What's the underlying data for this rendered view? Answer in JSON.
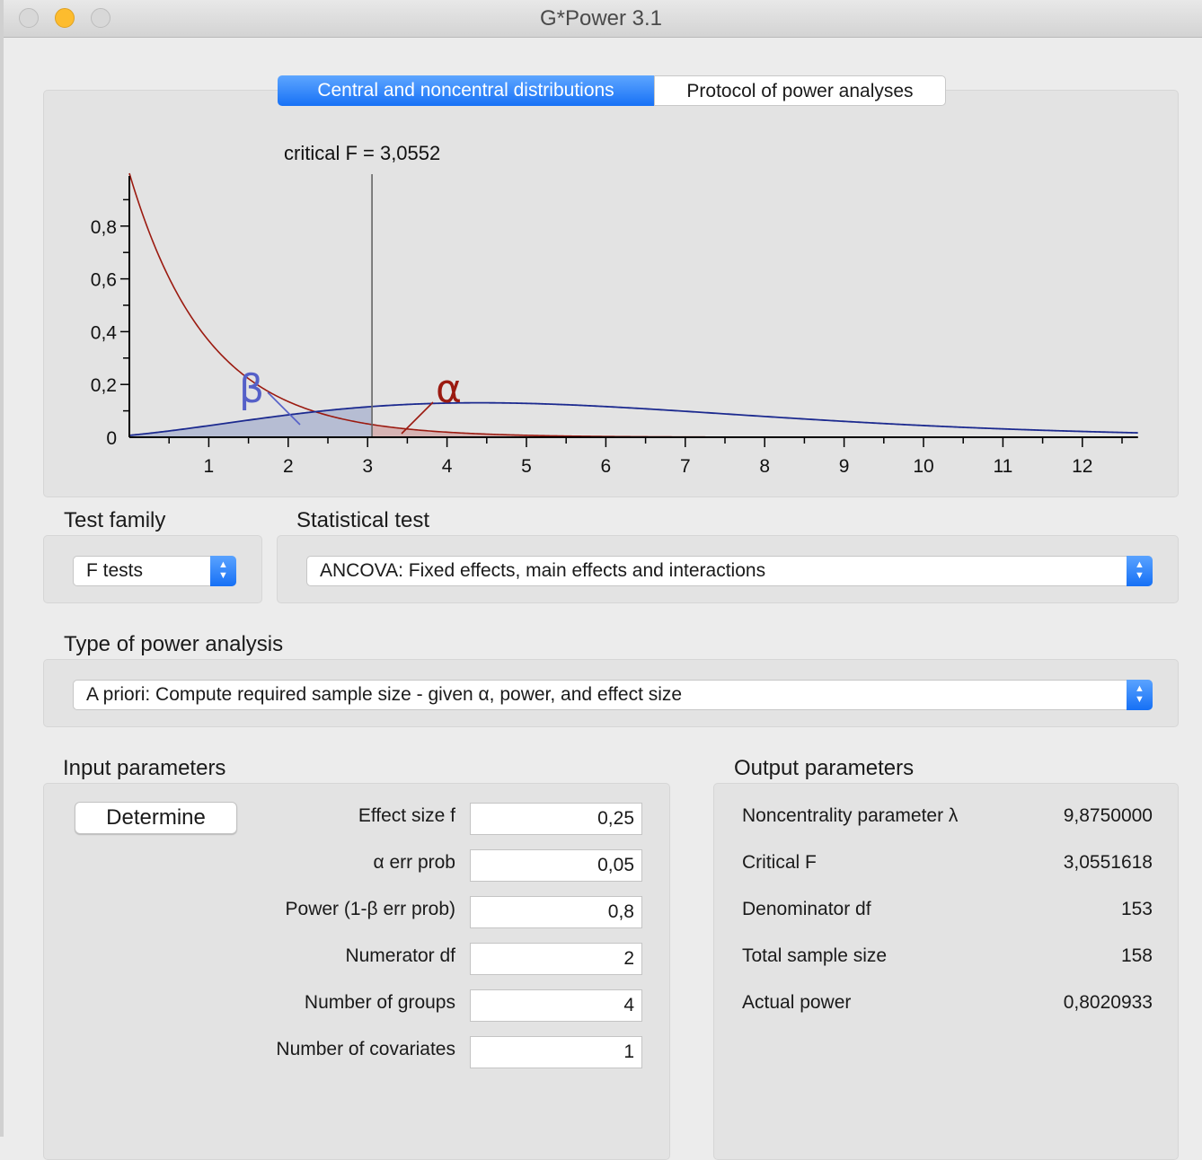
{
  "window": {
    "title": "G*Power 3.1"
  },
  "tabs": [
    {
      "label": "Central and noncentral distributions",
      "active": true
    },
    {
      "label": "Protocol of power analyses",
      "active": false
    }
  ],
  "chart_data": {
    "type": "line",
    "title": "critical F = 3,0552",
    "critical_f": 3.0552,
    "xlim": [
      0,
      12.7
    ],
    "ylim": [
      0,
      1
    ],
    "x_tick_labels": [
      "1",
      "2",
      "3",
      "4",
      "5",
      "6",
      "7",
      "8",
      "9",
      "10",
      "11",
      "12"
    ],
    "y_tick_labels": [
      "0",
      "0,2",
      "0,4",
      "0,6",
      "0,8"
    ],
    "series": [
      {
        "distribution": "central F",
        "df1": 2,
        "df2": 153,
        "color": "#9b1a10"
      },
      {
        "distribution": "noncentral F",
        "df1": 2,
        "df2": 153,
        "lambda": 9.875,
        "color": "#1c2a8f"
      }
    ],
    "annotations": {
      "beta": "β",
      "alpha": "α"
    },
    "colors": {
      "beta_fill": "#b6bdd3",
      "alpha_fill": "#d6b3b3",
      "beta_label": "#5560c8",
      "alpha_label": "#9b1a10"
    }
  },
  "test_family": {
    "label": "Test family",
    "value": "F tests"
  },
  "statistical_test": {
    "label": "Statistical test",
    "value": "ANCOVA: Fixed effects, main effects and interactions"
  },
  "power_analysis": {
    "label": "Type of power analysis",
    "value": "A priori: Compute required sample size - given α, power, and effect size"
  },
  "input": {
    "title": "Input parameters",
    "determine": "Determine",
    "params": [
      {
        "label": "Effect size f",
        "value": "0,25"
      },
      {
        "label": "α err prob",
        "value": "0,05"
      },
      {
        "label": "Power (1-β err prob)",
        "value": "0,8"
      },
      {
        "label": "Numerator df",
        "value": "2"
      },
      {
        "label": "Number of groups",
        "value": "4"
      },
      {
        "label": "Number of covariates",
        "value": "1"
      }
    ]
  },
  "output": {
    "title": "Output parameters",
    "params": [
      {
        "label": "Noncentrality parameter λ",
        "value": "9,8750000"
      },
      {
        "label": "Critical F",
        "value": "3,0551618"
      },
      {
        "label": "Denominator df",
        "value": "153"
      },
      {
        "label": "Total sample size",
        "value": "158"
      },
      {
        "label": "Actual power",
        "value": "0,8020933"
      }
    ]
  }
}
